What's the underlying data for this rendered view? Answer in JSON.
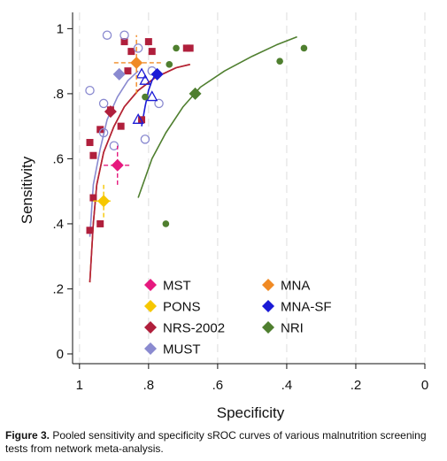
{
  "caption": {
    "label": "Figure 3.",
    "text": " Pooled sensitivity and specificity sROC curves of various malnutrition screening tests from network meta-analysis."
  },
  "chart_data": {
    "type": "scatter",
    "xlabel": "Specificity",
    "ylabel": "Sensitivity",
    "x_reversed": true,
    "xlim": [
      1.02,
      0.0
    ],
    "ylim": [
      -0.03,
      1.05
    ],
    "x_ticks": [
      {
        "v": 1,
        "label": "1"
      },
      {
        "v": 0.8,
        "label": ".8"
      },
      {
        "v": 0.6,
        "label": ".6"
      },
      {
        "v": 0.4,
        "label": ".4"
      },
      {
        "v": 0.2,
        "label": ".2"
      },
      {
        "v": 0,
        "label": "0"
      }
    ],
    "y_ticks": [
      {
        "v": 0,
        "label": "0"
      },
      {
        "v": 0.2,
        "label": ".2"
      },
      {
        "v": 0.4,
        "label": ".4"
      },
      {
        "v": 0.6,
        "label": ".6"
      },
      {
        "v": 0.8,
        "label": ".8"
      },
      {
        "v": 1,
        "label": "1"
      }
    ],
    "grid_x": true,
    "legend_placement": "bottom-center",
    "study_points": [
      {
        "test": "NRS-2002",
        "marker": "square",
        "color": "#b01f3c",
        "points": [
          [
            0.97,
            0.38
          ],
          [
            0.94,
            0.4
          ],
          [
            0.96,
            0.48
          ],
          [
            0.96,
            0.61
          ],
          [
            0.97,
            0.65
          ],
          [
            0.94,
            0.69
          ],
          [
            0.88,
            0.7
          ],
          [
            0.82,
            0.72
          ],
          [
            0.91,
            0.75
          ],
          [
            0.86,
            0.87
          ],
          [
            0.79,
            0.93
          ],
          [
            0.85,
            0.93
          ],
          [
            0.8,
            0.96
          ],
          [
            0.87,
            0.96
          ],
          [
            0.68,
            0.94
          ],
          [
            0.69,
            0.94
          ]
        ]
      },
      {
        "test": "MUST",
        "marker": "open-circle",
        "color": "#8a8ad0",
        "points": [
          [
            0.97,
            0.81
          ],
          [
            0.93,
            0.77
          ],
          [
            0.9,
            0.64
          ],
          [
            0.81,
            0.66
          ],
          [
            0.77,
            0.77
          ],
          [
            0.79,
            0.87
          ],
          [
            0.83,
            0.94
          ],
          [
            0.87,
            0.98
          ],
          [
            0.92,
            0.98
          ],
          [
            0.93,
            0.68
          ]
        ]
      },
      {
        "test": "MNA-SF",
        "marker": "open-triangle",
        "color": "#1a1ad6",
        "points": [
          [
            0.82,
            0.86
          ],
          [
            0.81,
            0.84
          ],
          [
            0.79,
            0.79
          ],
          [
            0.83,
            0.72
          ]
        ]
      },
      {
        "test": "NRI",
        "marker": "dot",
        "color": "#4f7f2f",
        "points": [
          [
            0.81,
            0.79
          ],
          [
            0.74,
            0.89
          ],
          [
            0.72,
            0.94
          ],
          [
            0.42,
            0.9
          ],
          [
            0.35,
            0.94
          ],
          [
            0.75,
            0.4
          ]
        ]
      }
    ],
    "summary_points": [
      {
        "name": "MST",
        "x": 0.89,
        "y": 0.58,
        "color": "#e6197e",
        "ci_x": [
          0.93,
          0.85
        ],
        "ci_y": [
          0.52,
          0.64
        ]
      },
      {
        "name": "PONS",
        "x": 0.93,
        "y": 0.47,
        "color": "#f6c700",
        "ci_x": [
          0.96,
          0.91
        ],
        "ci_y": [
          0.42,
          0.52
        ]
      },
      {
        "name": "NRS-2002",
        "x": 0.91,
        "y": 0.745,
        "color": "#b01f3c"
      },
      {
        "name": "MUST",
        "x": 0.885,
        "y": 0.86,
        "color": "#8a8ad0"
      },
      {
        "name": "MNA",
        "x": 0.835,
        "y": 0.895,
        "color": "#f08a24",
        "ci_x": [
          0.9,
          0.76
        ],
        "ci_y": [
          0.8,
          0.98
        ]
      },
      {
        "name": "MNA-SF",
        "x": 0.775,
        "y": 0.86,
        "color": "#1a1ad6"
      },
      {
        "name": "NRI",
        "x": 0.665,
        "y": 0.8,
        "color": "#4f7f2f"
      }
    ],
    "series": [
      {
        "name": "MST",
        "color": "#e6197e",
        "points": [
          [
            0.97,
            0.22
          ],
          [
            0.96,
            0.4
          ],
          [
            0.95,
            0.52
          ],
          [
            0.93,
            0.62
          ],
          [
            0.9,
            0.7
          ],
          [
            0.87,
            0.76
          ],
          [
            0.83,
            0.81
          ],
          [
            0.78,
            0.85
          ],
          [
            0.72,
            0.88
          ],
          [
            0.68,
            0.89
          ]
        ]
      },
      {
        "name": "PONS",
        "color": "#f6c700",
        "points": [
          [
            0.97,
            0.22
          ],
          [
            0.96,
            0.4
          ],
          [
            0.95,
            0.52
          ],
          [
            0.93,
            0.62
          ],
          [
            0.9,
            0.7
          ],
          [
            0.87,
            0.76
          ],
          [
            0.83,
            0.81
          ],
          [
            0.78,
            0.85
          ],
          [
            0.72,
            0.88
          ],
          [
            0.68,
            0.89
          ]
        ]
      },
      {
        "name": "NRS-2002",
        "color": "#b01f3c",
        "points": [
          [
            0.97,
            0.22
          ],
          [
            0.96,
            0.4
          ],
          [
            0.95,
            0.52
          ],
          [
            0.93,
            0.62
          ],
          [
            0.9,
            0.7
          ],
          [
            0.87,
            0.76
          ],
          [
            0.83,
            0.81
          ],
          [
            0.78,
            0.85
          ],
          [
            0.72,
            0.88
          ],
          [
            0.68,
            0.89
          ]
        ]
      },
      {
        "name": "MUST",
        "color": "#8a8ad0",
        "points": [
          [
            0.97,
            0.36
          ],
          [
            0.96,
            0.52
          ],
          [
            0.94,
            0.63
          ],
          [
            0.92,
            0.72
          ],
          [
            0.89,
            0.79
          ],
          [
            0.86,
            0.84
          ],
          [
            0.83,
            0.87
          ]
        ]
      },
      {
        "name": "MNA",
        "color": "#f08a24",
        "points": []
      },
      {
        "name": "MNA-SF",
        "color": "#1a1ad6",
        "points": [
          [
            0.82,
            0.7
          ],
          [
            0.81,
            0.76
          ],
          [
            0.8,
            0.81
          ],
          [
            0.79,
            0.84
          ],
          [
            0.78,
            0.86
          ]
        ]
      },
      {
        "name": "NRI",
        "color": "#4f7f2f",
        "points": [
          [
            0.83,
            0.48
          ],
          [
            0.79,
            0.6
          ],
          [
            0.75,
            0.68
          ],
          [
            0.7,
            0.76
          ],
          [
            0.65,
            0.82
          ],
          [
            0.58,
            0.87
          ],
          [
            0.5,
            0.915
          ],
          [
            0.43,
            0.95
          ],
          [
            0.37,
            0.975
          ]
        ]
      }
    ],
    "legend": [
      {
        "name": "MST",
        "color": "#e6197e"
      },
      {
        "name": "MNA",
        "color": "#f08a24"
      },
      {
        "name": "PONS",
        "color": "#f6c700"
      },
      {
        "name": "MNA-SF",
        "color": "#1a1ad6"
      },
      {
        "name": "NRS-2002",
        "color": "#b01f3c"
      },
      {
        "name": "NRI",
        "color": "#4f7f2f"
      },
      {
        "name": "MUST",
        "color": "#8a8ad0"
      }
    ]
  }
}
